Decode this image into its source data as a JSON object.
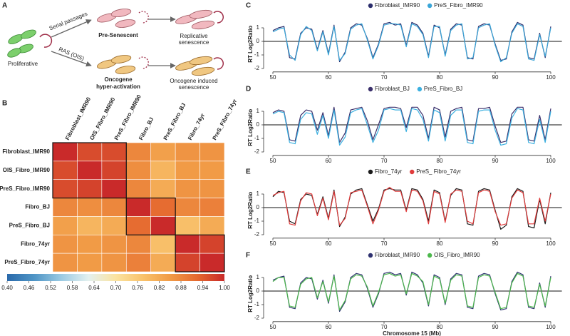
{
  "diagram": {
    "panel": "A",
    "proliferative": "Proliferative",
    "serial": "Serial passages",
    "ras": "RAS (OIS)",
    "presen": "Pre-Senescent",
    "onco": [
      "Oncogene",
      "hyper-activation"
    ],
    "replicative": [
      "Replicative",
      "senescence"
    ],
    "ois": [
      "Oncogene induced",
      "senescence"
    ]
  },
  "chart_data": [
    {
      "type": "heatmap",
      "panel": "B",
      "categories": [
        "Fibroblast_IMR90",
        "OIS_Fibro_IMR90",
        "PreS_Fibro_IMR90",
        "Fibro_BJ",
        "PreS_Fibro_BJ",
        "Fibro_74yr",
        "PreS_Fibro_74yr"
      ],
      "matrix": [
        [
          1.0,
          0.96,
          0.96,
          0.88,
          0.84,
          0.86,
          0.86
        ],
        [
          0.96,
          1.0,
          0.97,
          0.87,
          0.8,
          0.85,
          0.85
        ],
        [
          0.96,
          0.97,
          1.0,
          0.88,
          0.82,
          0.86,
          0.86
        ],
        [
          0.88,
          0.87,
          0.88,
          1.0,
          0.92,
          0.88,
          0.89
        ],
        [
          0.84,
          0.8,
          0.82,
          0.92,
          1.0,
          0.78,
          0.82
        ],
        [
          0.86,
          0.85,
          0.86,
          0.88,
          0.78,
          1.0,
          0.97
        ],
        [
          0.86,
          0.85,
          0.86,
          0.89,
          0.82,
          0.97,
          1.0
        ]
      ],
      "clusters": [
        [
          0,
          2
        ],
        [
          3,
          4
        ],
        [
          5,
          6
        ]
      ],
      "vlim": [
        0.4,
        1.0
      ],
      "colors": [
        "#2a6aab",
        "#4f95c6",
        "#9ccbe3",
        "#e3f1ef",
        "#fbe3a0",
        "#f9c26b",
        "#f19b46",
        "#e5692f",
        "#c92a2a"
      ],
      "ticks": [
        {
          "value": 0.4,
          "label": "0.40"
        },
        0.46,
        0.52,
        0.58,
        0.64,
        {
          "value": 0.7,
          "label": "0.70"
        },
        0.76,
        0.82,
        0.88,
        0.94,
        {
          "value": 1.0,
          "label": "1.00"
        }
      ]
    },
    {
      "type": "line",
      "panel": "C",
      "ylabel": "RT Log2Ratio",
      "xlim": [
        48,
        102
      ],
      "xticks": [
        50,
        60,
        70,
        80,
        90,
        100
      ],
      "ylim": [
        -2.2,
        1.8
      ],
      "yticks": [
        1,
        0,
        -1,
        -2
      ],
      "x": [
        50,
        51,
        52,
        53,
        54,
        55,
        56,
        57,
        58,
        59,
        60,
        61,
        62,
        63,
        64,
        65,
        66,
        67,
        68,
        69,
        70,
        71,
        72,
        73,
        74,
        75,
        76,
        77,
        78,
        79,
        80,
        81,
        82,
        83,
        84,
        85,
        86,
        87,
        88,
        89,
        90,
        91,
        92,
        93,
        94,
        95,
        96,
        97,
        98,
        99,
        100
      ],
      "series": [
        {
          "name": "Fibroblast_IMR90",
          "color": "#2b2d6c",
          "values": [
            0.8,
            1.0,
            1.1,
            -1.2,
            -1.3,
            0.6,
            1.0,
            0.9,
            -0.6,
            0.8,
            -0.9,
            1.2,
            -1.5,
            -0.8,
            1.0,
            1.3,
            1.2,
            0.2,
            -1.2,
            -0.2,
            1.3,
            1.4,
            1.2,
            1.3,
            -0.3,
            1.4,
            1.2,
            0.6,
            -1.1,
            1.2,
            1.0,
            -1.0,
            0.9,
            1.3,
            1.2,
            -1.2,
            -1.3,
            1.1,
            1.3,
            1.2,
            -0.2,
            -1.4,
            -1.3,
            0.7,
            1.4,
            1.2,
            -1.2,
            -1.3,
            0.6,
            -1.2,
            1.1
          ]
        },
        {
          "name": "PreS_Fibro_IMR90",
          "color": "#3aa6d8",
          "values": [
            0.7,
            0.9,
            1.0,
            -1.0,
            -1.4,
            0.5,
            1.1,
            0.8,
            -0.7,
            0.7,
            -1.0,
            1.1,
            -1.4,
            -0.9,
            0.9,
            1.2,
            1.3,
            0.1,
            -1.3,
            -0.3,
            1.2,
            1.3,
            1.3,
            1.2,
            -0.4,
            1.3,
            1.1,
            0.5,
            -1.2,
            1.1,
            1.1,
            -1.1,
            0.8,
            1.2,
            1.3,
            -1.3,
            -1.2,
            1.0,
            1.2,
            1.3,
            -0.3,
            -1.5,
            -1.2,
            0.6,
            1.3,
            1.1,
            -1.3,
            -1.4,
            0.5,
            -1.1,
            1.0
          ]
        }
      ]
    },
    {
      "type": "line",
      "panel": "D",
      "ylabel": "RT Log2Ratio",
      "xlim": [
        48,
        102
      ],
      "xticks": [
        50,
        60,
        70,
        80,
        90,
        100
      ],
      "ylim": [
        -2.2,
        1.8
      ],
      "yticks": [
        1,
        0,
        -1,
        -2
      ],
      "x": [
        50,
        51,
        52,
        53,
        54,
        55,
        56,
        57,
        58,
        59,
        60,
        61,
        62,
        63,
        64,
        65,
        66,
        67,
        68,
        69,
        70,
        71,
        72,
        73,
        74,
        75,
        76,
        77,
        78,
        79,
        80,
        81,
        82,
        83,
        84,
        85,
        86,
        87,
        88,
        89,
        90,
        91,
        92,
        93,
        94,
        95,
        96,
        97,
        98,
        99,
        100
      ],
      "series": [
        {
          "name": "Fibroblast_BJ",
          "color": "#3a2f6b",
          "values": [
            0.9,
            1.1,
            1.0,
            -1.1,
            -1.2,
            0.7,
            1.1,
            1.0,
            -0.4,
            0.9,
            -0.8,
            1.3,
            -1.3,
            -0.6,
            1.1,
            1.2,
            1.3,
            0.3,
            -1.1,
            0.0,
            1.2,
            1.3,
            1.3,
            1.2,
            -0.2,
            1.3,
            1.3,
            0.7,
            -1.0,
            1.3,
            1.1,
            -0.9,
            1.0,
            1.2,
            1.3,
            -1.1,
            -1.2,
            1.2,
            1.2,
            1.3,
            -0.1,
            -1.3,
            -1.2,
            0.8,
            1.3,
            1.3,
            -1.1,
            -1.2,
            0.7,
            -1.1,
            1.2
          ]
        },
        {
          "name": "PreS_Fibro_BJ",
          "color": "#3cb0e0",
          "values": [
            0.8,
            1.0,
            0.9,
            -1.3,
            -1.4,
            0.4,
            0.9,
            0.8,
            -0.7,
            0.7,
            -1.0,
            1.1,
            -1.5,
            -0.9,
            0.9,
            1.1,
            1.2,
            0.0,
            -1.3,
            -0.4,
            1.1,
            1.2,
            1.1,
            1.1,
            -0.5,
            1.2,
            1.1,
            0.4,
            -1.2,
            1.1,
            0.9,
            -1.2,
            0.7,
            1.1,
            1.1,
            -1.3,
            -1.4,
            1.0,
            1.1,
            1.1,
            -0.4,
            -1.5,
            -1.4,
            0.5,
            1.2,
            1.1,
            -1.3,
            -1.4,
            0.4,
            -1.3,
            1.0
          ]
        }
      ]
    },
    {
      "type": "line",
      "panel": "E",
      "ylabel": "RT Log2Ratio",
      "xlim": [
        48,
        102
      ],
      "xticks": [
        50,
        60,
        70,
        80,
        90,
        100
      ],
      "ylim": [
        -2.2,
        1.8
      ],
      "yticks": [
        1,
        0,
        -1,
        -2
      ],
      "x": [
        50,
        51,
        52,
        53,
        54,
        55,
        56,
        57,
        58,
        59,
        60,
        61,
        62,
        63,
        64,
        65,
        66,
        67,
        68,
        69,
        70,
        71,
        72,
        73,
        74,
        75,
        76,
        77,
        78,
        79,
        80,
        81,
        82,
        83,
        84,
        85,
        86,
        87,
        88,
        89,
        90,
        91,
        92,
        93,
        94,
        95,
        96,
        97,
        98,
        99,
        100
      ],
      "series": [
        {
          "name": "Fibro_74yr",
          "color": "#1a1a1a",
          "values": [
            0.8,
            1.2,
            1.1,
            -1.0,
            -1.2,
            0.6,
            1.0,
            0.9,
            -0.5,
            0.8,
            -0.8,
            1.3,
            -1.4,
            -0.7,
            1.0,
            1.3,
            1.4,
            0.2,
            -1.0,
            -0.1,
            1.3,
            1.4,
            1.3,
            1.3,
            -0.2,
            1.4,
            1.3,
            0.6,
            -1.0,
            1.3,
            1.1,
            -1.0,
            0.9,
            1.4,
            1.3,
            -1.2,
            -1.3,
            1.2,
            1.4,
            1.3,
            -0.2,
            -1.6,
            -1.3,
            0.8,
            1.4,
            1.2,
            -1.4,
            -1.5,
            0.6,
            -1.2,
            1.1
          ]
        },
        {
          "name": "PreS_ Fibro_74yr",
          "color": "#e03c3c",
          "values": [
            0.9,
            1.1,
            1.2,
            -1.2,
            -1.3,
            0.5,
            1.1,
            1.0,
            -0.6,
            0.7,
            -0.9,
            1.2,
            -1.3,
            -0.8,
            1.1,
            1.2,
            1.3,
            0.1,
            -1.2,
            -0.2,
            1.2,
            1.5,
            1.2,
            1.2,
            -0.3,
            1.3,
            1.2,
            0.5,
            -1.2,
            1.2,
            1.0,
            -1.1,
            1.0,
            1.3,
            1.2,
            -1.0,
            -1.2,
            1.1,
            1.3,
            1.2,
            -0.3,
            -1.3,
            -1.2,
            0.7,
            1.3,
            1.1,
            -1.2,
            -1.2,
            0.7,
            -1.0,
            1.0
          ]
        }
      ]
    },
    {
      "type": "line",
      "panel": "F",
      "ylabel": "RT Log2Ratio",
      "xlabel": "Chromosome 15 (Mb)",
      "xlim": [
        48,
        102
      ],
      "xticks": [
        50,
        60,
        70,
        80,
        90,
        100
      ],
      "ylim": [
        -2.2,
        1.8
      ],
      "yticks": [
        1,
        0,
        -1,
        -2
      ],
      "x": [
        50,
        51,
        52,
        53,
        54,
        55,
        56,
        57,
        58,
        59,
        60,
        61,
        62,
        63,
        64,
        65,
        66,
        67,
        68,
        69,
        70,
        71,
        72,
        73,
        74,
        75,
        76,
        77,
        78,
        79,
        80,
        81,
        82,
        83,
        84,
        85,
        86,
        87,
        88,
        89,
        90,
        91,
        92,
        93,
        94,
        95,
        96,
        97,
        98,
        99,
        100
      ],
      "series": [
        {
          "name": "Fibroblast_IMR90",
          "color": "#2e3170",
          "values": [
            0.8,
            1.0,
            1.1,
            -1.2,
            -1.3,
            0.6,
            1.0,
            0.9,
            -0.6,
            0.8,
            -0.9,
            1.2,
            -1.5,
            -0.8,
            1.0,
            1.3,
            1.2,
            0.2,
            -1.2,
            -0.2,
            1.3,
            1.4,
            1.2,
            1.3,
            -0.3,
            1.4,
            1.2,
            0.6,
            -1.1,
            1.2,
            1.0,
            -1.0,
            0.9,
            1.3,
            1.2,
            -1.2,
            -1.3,
            1.1,
            1.3,
            1.2,
            -0.2,
            -1.4,
            -1.3,
            0.7,
            1.4,
            1.2,
            -1.2,
            -1.3,
            0.6,
            -1.2,
            1.1
          ]
        },
        {
          "name": "OIS_Fibro_IMR90",
          "color": "#4cb84c",
          "values": [
            0.7,
            1.0,
            1.0,
            -1.1,
            -1.2,
            0.5,
            0.9,
            1.0,
            -0.5,
            0.7,
            -0.8,
            1.1,
            -1.4,
            -0.7,
            0.9,
            1.2,
            1.1,
            0.3,
            -1.1,
            -0.1,
            1.2,
            1.3,
            1.1,
            1.2,
            -0.2,
            1.3,
            1.1,
            0.7,
            -1.0,
            1.1,
            0.9,
            -0.9,
            0.8,
            1.2,
            1.1,
            -1.1,
            -1.2,
            1.0,
            1.2,
            1.1,
            -0.1,
            -1.3,
            -1.2,
            0.6,
            1.3,
            1.1,
            -1.1,
            -1.2,
            0.5,
            -1.1,
            1.0
          ]
        }
      ]
    }
  ]
}
